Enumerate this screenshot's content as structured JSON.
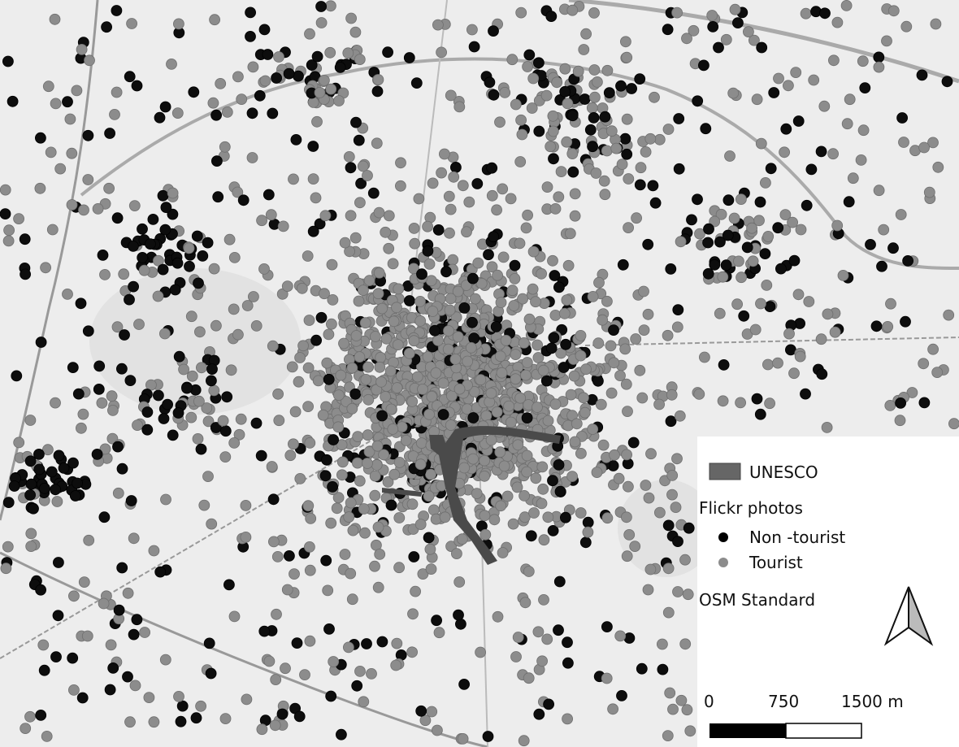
{
  "legend": {
    "unesco": "UNESCO",
    "group_title": "Flickr photos",
    "non_tourist": "Non -tourist",
    "tourist": "Tourist",
    "basemap": "OSM Standard"
  },
  "scale_bar": {
    "labels": [
      "0",
      "750",
      "1500 m"
    ]
  }
}
